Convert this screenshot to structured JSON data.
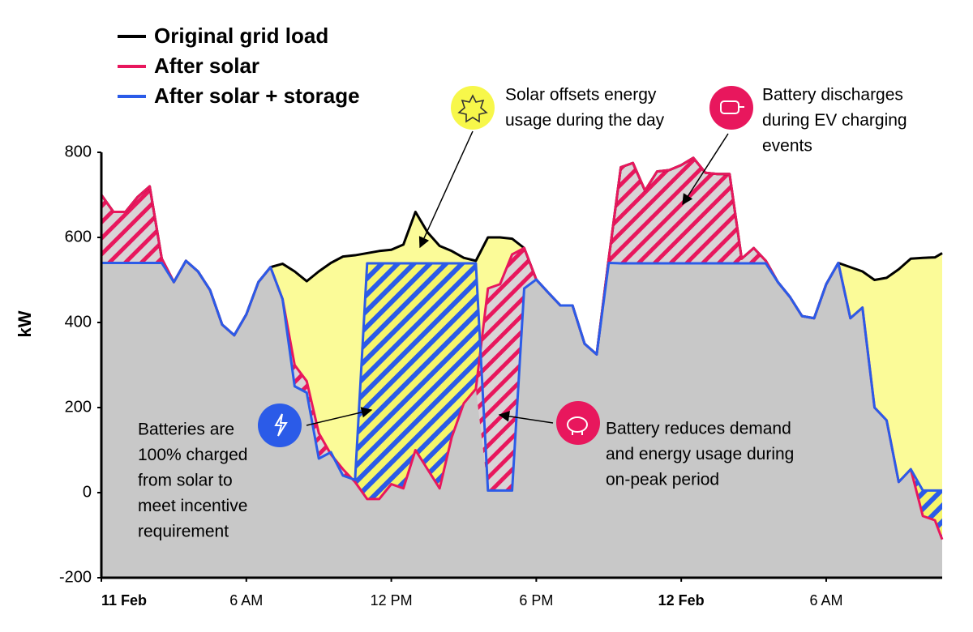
{
  "chart_data": {
    "type": "area",
    "ylabel": "kW",
    "xlim": [
      0,
      34.8
    ],
    "ylim": [
      -200,
      800
    ],
    "yticks": [
      -200,
      0,
      200,
      400,
      600,
      800
    ],
    "xticks": [
      {
        "value": 0,
        "label": "11 Feb",
        "bold": true
      },
      {
        "value": 6,
        "label": "6 AM"
      },
      {
        "value": 12,
        "label": "12 PM"
      },
      {
        "value": 18,
        "label": "6 PM"
      },
      {
        "value": 24,
        "label": "12 Feb",
        "bold": true
      },
      {
        "value": 30,
        "label": "6 AM"
      }
    ],
    "x": [
      0,
      0.5,
      1,
      1.5,
      2,
      2.5,
      3,
      3.5,
      4,
      4.5,
      5,
      5.5,
      6,
      6.5,
      7,
      7.5,
      8,
      8.5,
      9,
      9.5,
      10,
      10.5,
      11,
      11.5,
      12,
      12.5,
      13,
      13.5,
      14,
      14.5,
      15,
      15.5,
      16,
      16.5,
      17,
      17.5,
      18,
      18.5,
      19,
      19.5,
      20,
      20.5,
      21,
      21.5,
      22,
      22.5,
      23,
      23.5,
      24,
      24.5,
      25,
      25.5,
      26,
      26.5,
      27,
      27.5,
      28,
      28.5,
      29,
      29.5,
      30,
      30.5,
      31,
      31.5,
      32,
      32.5,
      33,
      33.5,
      34,
      34.5,
      34.8
    ],
    "series": [
      {
        "name": "Original grid load",
        "color": "#000000",
        "values": [
          700,
          660,
          660,
          695,
          720,
          550,
          495,
          545,
          520,
          476,
          395,
          370,
          419,
          495,
          530,
          538,
          520,
          497,
          520,
          540,
          555,
          558,
          563,
          568,
          571,
          583,
          660,
          612,
          580,
          568,
          552,
          545,
          600,
          600,
          597,
          575,
          501,
          470,
          440,
          440,
          350,
          325,
          550,
          765,
          775,
          710,
          755,
          758,
          770,
          787,
          752,
          749,
          749,
          550,
          575,
          545,
          495,
          460,
          415,
          410,
          490,
          540,
          530,
          520,
          500,
          505,
          525,
          550,
          552,
          553,
          563
        ]
      },
      {
        "name": "After solar",
        "color": "#e8175d",
        "values": [
          700,
          660,
          660,
          695,
          720,
          550,
          495,
          545,
          520,
          476,
          395,
          370,
          419,
          495,
          530,
          455,
          300,
          262,
          140,
          90,
          55,
          25,
          -15,
          -15,
          20,
          10,
          100,
          55,
          10,
          130,
          210,
          244,
          480,
          490,
          560,
          575,
          501,
          470,
          440,
          440,
          350,
          325,
          550,
          765,
          775,
          710,
          755,
          758,
          770,
          787,
          752,
          749,
          749,
          550,
          575,
          545,
          495,
          460,
          415,
          410,
          490,
          540,
          410,
          435,
          200,
          170,
          25,
          55,
          -55,
          -65,
          -110
        ]
      },
      {
        "name": "After solar + storage",
        "color": "#2b5be8",
        "values": [
          540,
          540,
          540,
          540,
          540,
          540,
          495,
          545,
          520,
          476,
          395,
          370,
          419,
          495,
          530,
          455,
          250,
          235,
          80,
          95,
          40,
          30,
          539,
          539,
          539,
          539,
          539,
          539,
          539,
          539,
          539,
          539,
          5,
          5,
          5,
          480,
          501,
          470,
          440,
          440,
          350,
          325,
          540,
          539,
          539,
          539,
          539,
          539,
          539,
          539,
          539,
          539,
          539,
          539,
          539,
          539,
          495,
          460,
          415,
          410,
          490,
          540,
          410,
          435,
          200,
          170,
          25,
          55,
          5,
          5,
          5
        ]
      }
    ],
    "fill_colors": {
      "solar": "#fbfb98",
      "base": "#c8c8c8"
    },
    "annotations": [
      {
        "lines": [
          "Solar offsets energy",
          "usage during the day"
        ]
      },
      {
        "lines": [
          "Battery discharges",
          "during EV charging",
          "events"
        ]
      },
      {
        "lines": [
          "Batteries are",
          "100% charged",
          "from solar to",
          "meet incentive",
          "requirement"
        ]
      },
      {
        "lines": [
          "Battery reduces demand",
          "and energy usage during",
          "on-peak period"
        ]
      }
    ]
  }
}
